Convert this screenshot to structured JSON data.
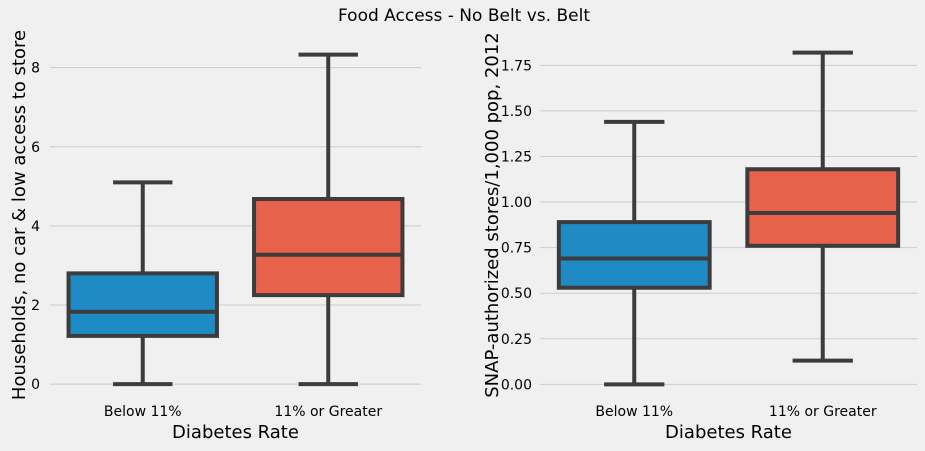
{
  "suptitle": "Food Access - No Belt vs. Belt",
  "colors": {
    "background": "#f0f0f0",
    "grid": "#cbcbcb",
    "edge": "#3c3c3c",
    "tick_text": "#000000"
  },
  "chart_data": [
    {
      "type": "boxplot",
      "xlabel": "Diabetes Rate",
      "ylabel": "Households, no car & low access to store",
      "ylim": [
        -0.35,
        8.75
      ],
      "yticks": [
        0,
        2,
        4,
        6,
        8
      ],
      "ytick_labels": [
        "0",
        "2",
        "4",
        "6",
        "8"
      ],
      "grid": "horizontal",
      "categories": [
        "Below 11%",
        "11% or Greater"
      ],
      "boxes": [
        {
          "category": "Below 11%",
          "color": "#1f8bc5",
          "whisker_low": 0.0,
          "q1": 1.22,
          "median": 1.83,
          "q3": 2.8,
          "whisker_high": 5.1
        },
        {
          "category": "11% or Greater",
          "color": "#e8614a",
          "whisker_low": 0.0,
          "q1": 2.25,
          "median": 3.27,
          "q3": 4.68,
          "whisker_high": 8.33
        }
      ]
    },
    {
      "type": "boxplot",
      "xlabel": "Diabetes Rate",
      "ylabel": "SNAP-authorized stores/1,000 pop, 2012",
      "ylim": [
        -0.075,
        1.9
      ],
      "yticks": [
        0.0,
        0.25,
        0.5,
        0.75,
        1.0,
        1.25,
        1.5,
        1.75
      ],
      "ytick_labels": [
        "0.00",
        "0.25",
        "0.50",
        "0.75",
        "1.00",
        "1.25",
        "1.50",
        "1.75"
      ],
      "grid": "horizontal",
      "categories": [
        "Below 11%",
        "11% or Greater"
      ],
      "boxes": [
        {
          "category": "Below 11%",
          "color": "#1f8bc5",
          "whisker_low": 0.0,
          "q1": 0.53,
          "median": 0.69,
          "q3": 0.89,
          "whisker_high": 1.44
        },
        {
          "category": "11% or Greater",
          "color": "#e8614a",
          "whisker_low": 0.13,
          "q1": 0.76,
          "median": 0.94,
          "q3": 1.18,
          "whisker_high": 1.82
        }
      ]
    }
  ]
}
